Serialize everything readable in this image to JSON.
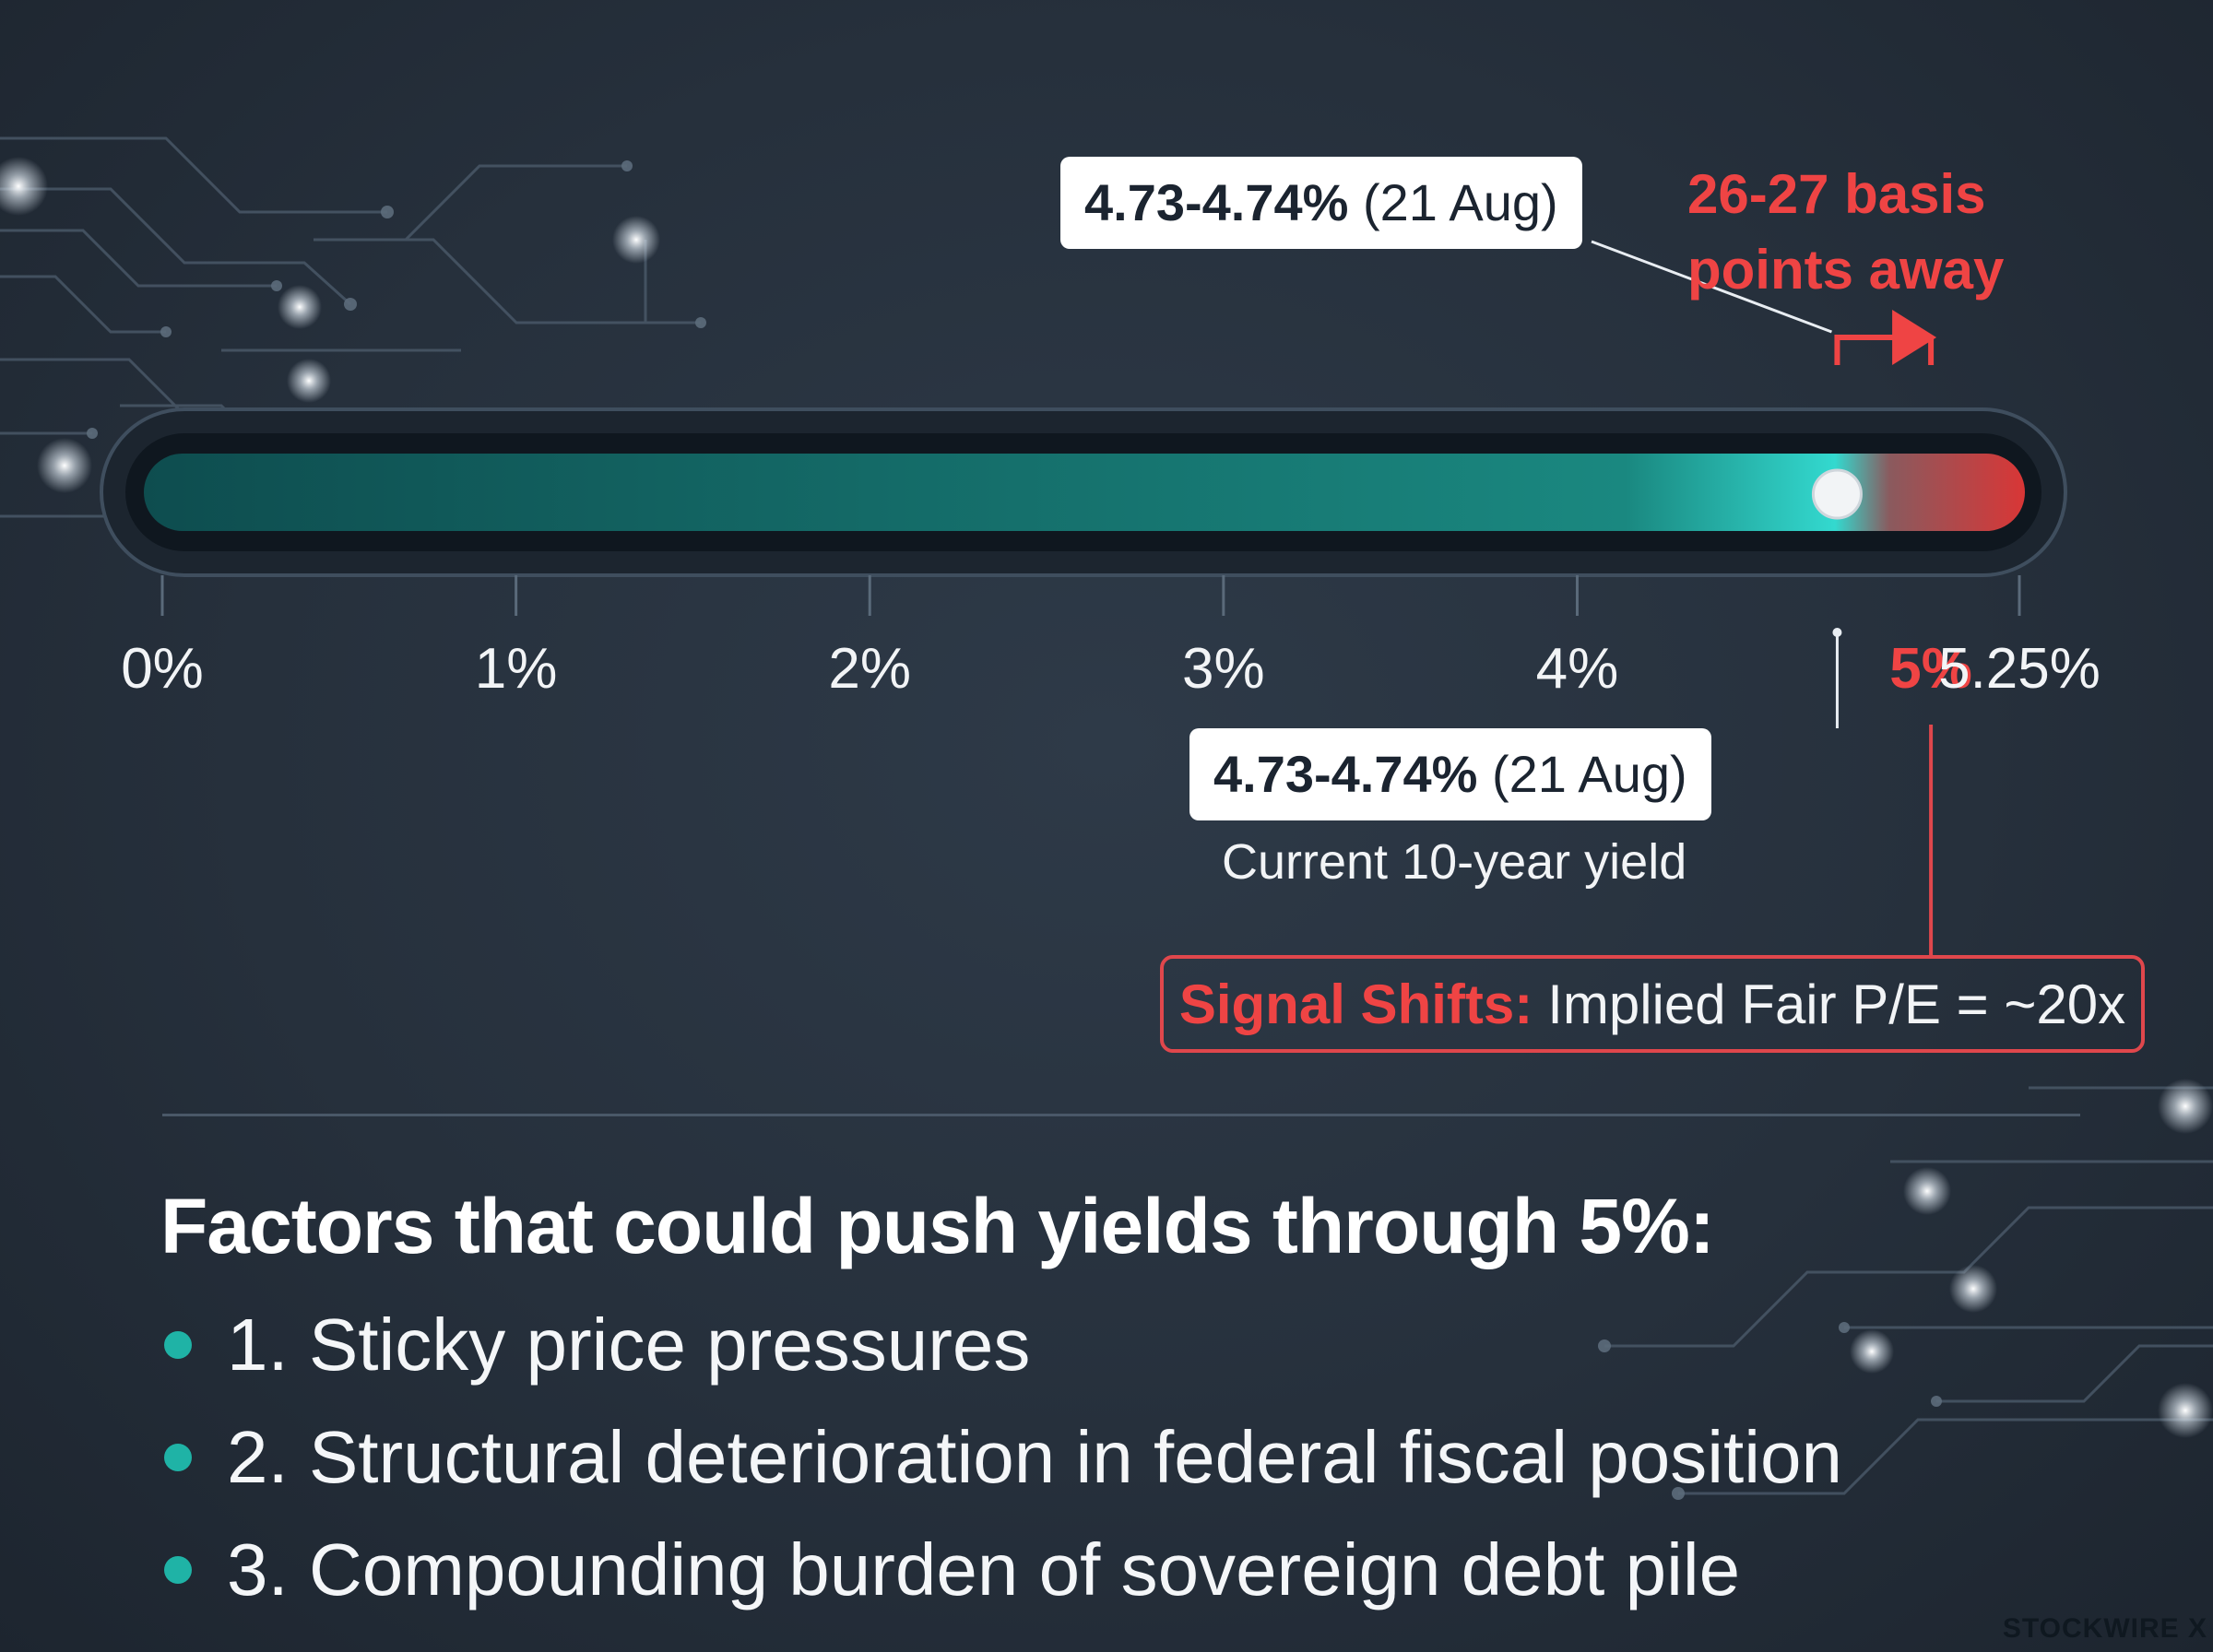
{
  "chart_data": {
    "type": "bar",
    "axis": {
      "min": 0,
      "max": 5.25,
      "ticks": [
        0,
        1,
        2,
        3,
        4,
        5,
        5.25
      ],
      "tick_labels": [
        "0%",
        "1%",
        "2%",
        "3%",
        "4%",
        "5%",
        "5.25%"
      ],
      "highlight_tick": "5%"
    },
    "current_value": 4.735,
    "threshold": 5,
    "callout_top": {
      "value": "4.73-4.74%",
      "date": "(21 Aug)"
    },
    "callout_bottom": {
      "value": "4.73-4.74%",
      "date": "(21 Aug)",
      "caption": "Current 10-year yield"
    },
    "distance_label": {
      "line1": "26-27 basis",
      "line2": "points away"
    },
    "signal": {
      "key": "Signal Shifts:",
      "text": "Implied Fair P/E = ~20x"
    },
    "colors": {
      "safe": "#1e8a82",
      "current": "#2fe0d4",
      "danger": "#ef4444",
      "danger_fill": "#d93636"
    }
  },
  "factors": {
    "title": "Factors that could push yields through 5%:",
    "items": [
      "1. Sticky price pressures",
      "2. Structural deterioration in federal fiscal position",
      "3. Compounding burden of sovereign debt pile"
    ]
  },
  "brand": "STOCKWIRE X"
}
